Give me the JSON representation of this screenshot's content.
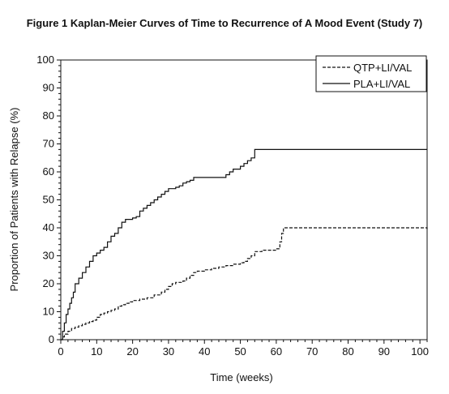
{
  "chart_data": {
    "type": "line",
    "title": "Figure 1 Kaplan-Meier Curves of Time to Recurrence of A Mood Event (Study 7)",
    "xlabel": "Time (weeks)",
    "ylabel": "Proportion of Patients with Relapse (%)",
    "xlim": [
      0,
      102
    ],
    "ylim": [
      0,
      100
    ],
    "x_ticks": [
      "0",
      "10",
      "20",
      "30",
      "40",
      "50",
      "60",
      "70",
      "80",
      "90",
      "100"
    ],
    "y_ticks": [
      "0",
      "10",
      "20",
      "30",
      "40",
      "50",
      "60",
      "70",
      "80",
      "90",
      "100"
    ],
    "legend_position": "top-right",
    "series": [
      {
        "name": "QTP+LI/VAL",
        "style": "dashed",
        "color": "#111111",
        "points": [
          [
            0,
            0
          ],
          [
            0.5,
            1
          ],
          [
            1,
            2
          ],
          [
            2,
            3
          ],
          [
            3,
            4
          ],
          [
            4,
            4.5
          ],
          [
            5,
            5
          ],
          [
            6,
            5.5
          ],
          [
            7,
            6
          ],
          [
            8,
            6.5
          ],
          [
            9,
            7
          ],
          [
            10,
            8
          ],
          [
            11,
            9
          ],
          [
            12,
            9.5
          ],
          [
            13,
            10
          ],
          [
            14,
            10.5
          ],
          [
            15,
            11
          ],
          [
            16,
            12
          ],
          [
            17,
            12.5
          ],
          [
            18,
            13
          ],
          [
            19,
            13.5
          ],
          [
            20,
            14
          ],
          [
            22,
            14.5
          ],
          [
            24,
            15
          ],
          [
            26,
            16
          ],
          [
            28,
            17
          ],
          [
            29,
            18
          ],
          [
            30,
            19
          ],
          [
            31,
            20
          ],
          [
            32,
            20.5
          ],
          [
            34,
            21
          ],
          [
            35,
            22
          ],
          [
            36,
            23
          ],
          [
            37,
            24
          ],
          [
            38,
            24.5
          ],
          [
            40,
            25
          ],
          [
            42,
            25.5
          ],
          [
            44,
            26
          ],
          [
            46,
            26.5
          ],
          [
            48,
            27
          ],
          [
            50,
            27.5
          ],
          [
            51,
            28
          ],
          [
            52,
            29
          ],
          [
            53,
            30
          ],
          [
            54,
            31.5
          ],
          [
            56,
            32
          ],
          [
            60,
            32.5
          ],
          [
            61,
            35
          ],
          [
            61.5,
            38
          ],
          [
            62,
            40
          ],
          [
            102,
            39.5
          ]
        ]
      },
      {
        "name": "PLA+LI/VAL",
        "style": "solid",
        "color": "#111111",
        "points": [
          [
            0,
            0
          ],
          [
            0.5,
            3
          ],
          [
            1,
            6
          ],
          [
            1.5,
            9
          ],
          [
            2,
            11
          ],
          [
            2.5,
            13
          ],
          [
            3,
            15
          ],
          [
            3.5,
            17
          ],
          [
            4,
            20
          ],
          [
            5,
            22
          ],
          [
            6,
            24
          ],
          [
            7,
            26
          ],
          [
            8,
            28
          ],
          [
            9,
            30
          ],
          [
            10,
            31
          ],
          [
            11,
            32
          ],
          [
            12,
            33
          ],
          [
            13,
            35
          ],
          [
            14,
            37
          ],
          [
            15,
            38
          ],
          [
            16,
            40
          ],
          [
            17,
            42
          ],
          [
            18,
            43
          ],
          [
            20,
            43.5
          ],
          [
            21,
            44
          ],
          [
            22,
            46
          ],
          [
            23,
            47
          ],
          [
            24,
            48
          ],
          [
            25,
            49
          ],
          [
            26,
            50
          ],
          [
            27,
            51
          ],
          [
            28,
            52
          ],
          [
            29,
            53
          ],
          [
            30,
            54
          ],
          [
            32,
            54.5
          ],
          [
            33,
            55
          ],
          [
            34,
            56
          ],
          [
            35,
            56.5
          ],
          [
            36,
            57
          ],
          [
            37,
            58
          ],
          [
            39,
            58
          ],
          [
            45,
            58
          ],
          [
            46,
            59
          ],
          [
            47,
            60
          ],
          [
            48,
            61
          ],
          [
            50,
            62
          ],
          [
            51,
            63
          ],
          [
            52,
            64
          ],
          [
            53,
            65
          ],
          [
            54,
            68
          ],
          [
            102,
            68
          ]
        ]
      }
    ]
  }
}
